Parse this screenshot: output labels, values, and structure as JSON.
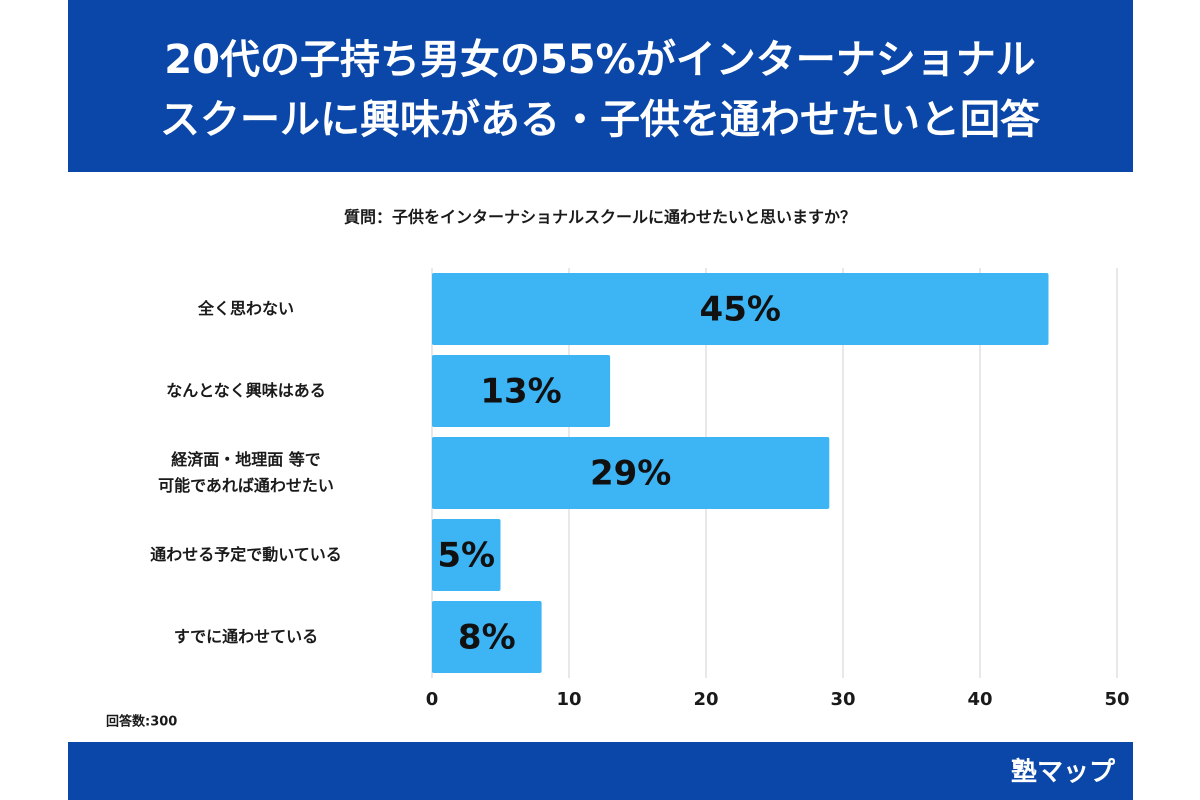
{
  "chart_data": {
    "type": "bar",
    "orientation": "horizontal",
    "title": [
      "20代の子持ち男女の55%がインターナショナル",
      "スクールに興味がある・子供を通わせたいと回答"
    ],
    "subtitle": "質問：子供をインターナショナルスクールに通わせたいと思いますか？",
    "categories": [
      "全く思わない",
      "なんとなく興味はある",
      "経済面・地理面 等で\n可能であれば通わせたい",
      "通わせる予定で動いている",
      "すでに通わせている"
    ],
    "values": [
      45,
      13,
      29,
      5,
      8
    ],
    "value_labels": [
      "45%",
      "13%",
      "29%",
      "5%",
      "8%"
    ],
    "color": "#3db5f5",
    "xlim": [
      0,
      50
    ],
    "xticks": [
      0,
      10,
      20,
      30,
      40,
      50
    ],
    "grid": true,
    "note": "回答数:300",
    "brand": "塾マップ"
  }
}
